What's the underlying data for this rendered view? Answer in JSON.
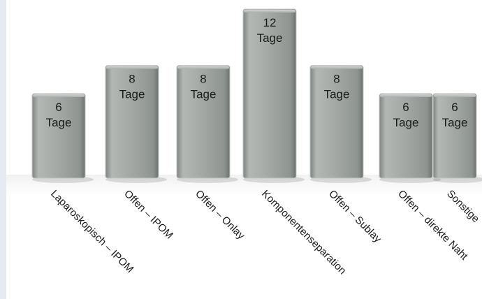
{
  "chart_data": {
    "type": "bar",
    "categories": [
      "Laparoskopisch – IPOM",
      "Offen – IPOM",
      "Offen – Onlay",
      "Komponentenseparation",
      "Offen – Sublay",
      "Offen – direkte Naht",
      "Sonstige"
    ],
    "values": [
      6,
      8,
      8,
      12,
      8,
      6,
      6
    ],
    "unit_label": "Tage",
    "ylim": [
      0,
      12
    ],
    "grid": false,
    "legend": "none",
    "colors": {
      "bar_face": "#a2a7a3",
      "bar_edge": "#c4c8c5",
      "bar_shadow": "#6e7370",
      "strip": "#e6ebf2"
    }
  }
}
